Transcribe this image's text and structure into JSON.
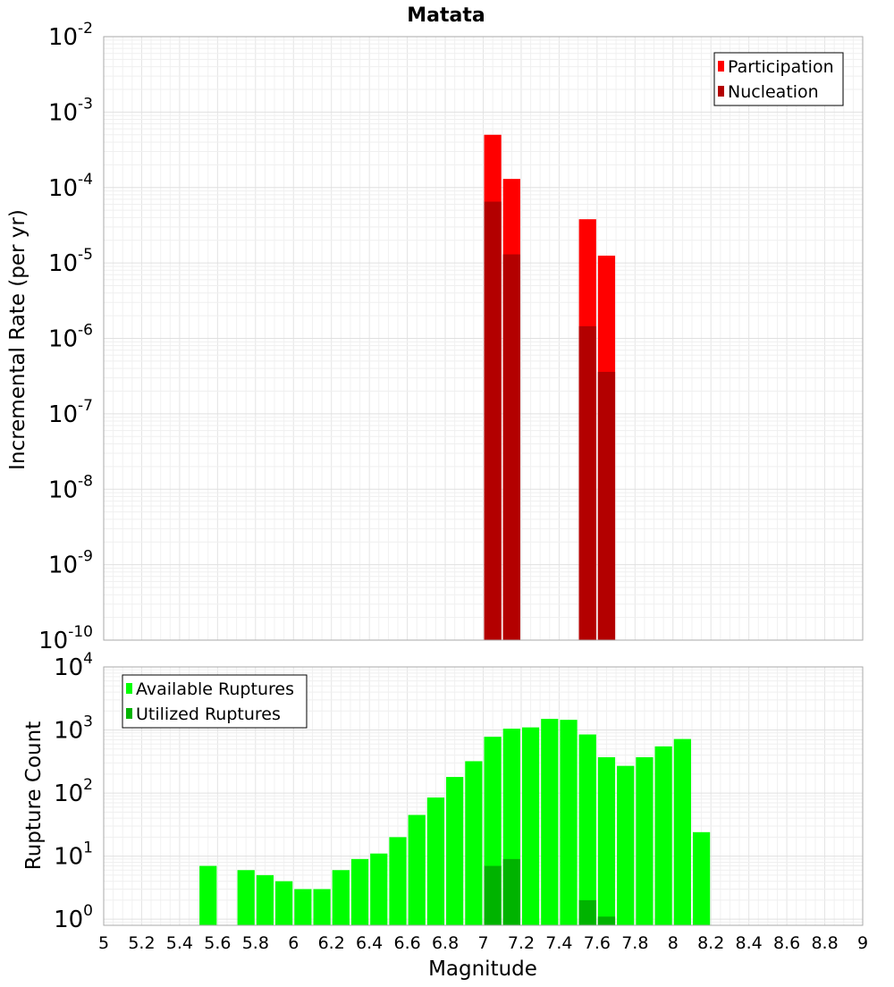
{
  "chart_data": [
    {
      "type": "bar",
      "title": "Matata",
      "ylabel": "Incremental Rate (per yr)",
      "xlabel": "",
      "y_scale": "log",
      "ylim": [
        1e-10,
        0.01
      ],
      "xlim": [
        5,
        9
      ],
      "y_ticks": [
        {
          "base": "10",
          "exp": "-10",
          "value": 1e-10
        },
        {
          "base": "10",
          "exp": "-9",
          "value": 1e-09
        },
        {
          "base": "10",
          "exp": "-8",
          "value": 1e-08
        },
        {
          "base": "10",
          "exp": "-7",
          "value": 1e-07
        },
        {
          "base": "10",
          "exp": "-6",
          "value": 1e-06
        },
        {
          "base": "10",
          "exp": "-5",
          "value": 1e-05
        },
        {
          "base": "10",
          "exp": "-4",
          "value": 0.0001
        },
        {
          "base": "10",
          "exp": "-3",
          "value": 0.001
        },
        {
          "base": "10",
          "exp": "-2",
          "value": 0.01
        }
      ],
      "grid": true,
      "legend_position": "top-right",
      "series": [
        {
          "name": "Participation",
          "color": "#ff0000",
          "points": [
            {
              "x": 7.05,
              "y": 0.0005
            },
            {
              "x": 7.15,
              "y": 0.00013
            },
            {
              "x": 7.55,
              "y": 3.8e-05
            },
            {
              "x": 7.65,
              "y": 1.25e-05
            }
          ]
        },
        {
          "name": "Nucleation",
          "color": "#b30000",
          "points": [
            {
              "x": 7.05,
              "y": 6.5e-05
            },
            {
              "x": 7.15,
              "y": 1.3e-05
            },
            {
              "x": 7.55,
              "y": 1.45e-06
            },
            {
              "x": 7.65,
              "y": 3.6e-07
            }
          ]
        }
      ]
    },
    {
      "type": "bar",
      "title": "",
      "ylabel": "Rupture Count",
      "xlabel": "Magnitude",
      "y_scale": "log",
      "ylim": [
        0.8,
        10000
      ],
      "xlim": [
        5,
        9
      ],
      "x_tick_labels": [
        "5",
        "5.2",
        "5.4",
        "5.6",
        "5.8",
        "6",
        "6.2",
        "6.4",
        "6.6",
        "6.8",
        "7",
        "7.2",
        "7.4",
        "7.6",
        "7.8",
        "8",
        "8.2",
        "8.4",
        "8.6",
        "8.8",
        "9"
      ],
      "y_ticks": [
        {
          "base": "10",
          "exp": "0",
          "value": 1
        },
        {
          "base": "10",
          "exp": "1",
          "value": 10
        },
        {
          "base": "10",
          "exp": "2",
          "value": 100
        },
        {
          "base": "10",
          "exp": "3",
          "value": 1000
        },
        {
          "base": "10",
          "exp": "4",
          "value": 10000
        }
      ],
      "grid": true,
      "legend_position": "top-left",
      "series": [
        {
          "name": "Available Ruptures",
          "color": "#00ff00",
          "points": [
            {
              "x": 5.55,
              "y": 7
            },
            {
              "x": 5.75,
              "y": 6
            },
            {
              "x": 5.85,
              "y": 5
            },
            {
              "x": 5.95,
              "y": 4
            },
            {
              "x": 6.05,
              "y": 3
            },
            {
              "x": 6.15,
              "y": 3
            },
            {
              "x": 6.25,
              "y": 6
            },
            {
              "x": 6.35,
              "y": 9
            },
            {
              "x": 6.45,
              "y": 11
            },
            {
              "x": 6.55,
              "y": 20
            },
            {
              "x": 6.65,
              "y": 45
            },
            {
              "x": 6.75,
              "y": 85
            },
            {
              "x": 6.85,
              "y": 180
            },
            {
              "x": 6.95,
              "y": 320
            },
            {
              "x": 7.05,
              "y": 780
            },
            {
              "x": 7.15,
              "y": 1050
            },
            {
              "x": 7.25,
              "y": 1100
            },
            {
              "x": 7.35,
              "y": 1500
            },
            {
              "x": 7.45,
              "y": 1450
            },
            {
              "x": 7.55,
              "y": 850
            },
            {
              "x": 7.65,
              "y": 370
            },
            {
              "x": 7.75,
              "y": 270
            },
            {
              "x": 7.85,
              "y": 370
            },
            {
              "x": 7.95,
              "y": 550
            },
            {
              "x": 8.05,
              "y": 720
            },
            {
              "x": 8.15,
              "y": 24
            }
          ]
        },
        {
          "name": "Utilized Ruptures",
          "color": "#00b300",
          "points": [
            {
              "x": 7.05,
              "y": 7
            },
            {
              "x": 7.15,
              "y": 9
            },
            {
              "x": 7.55,
              "y": 2
            },
            {
              "x": 7.65,
              "y": 1.1
            }
          ]
        }
      ]
    }
  ]
}
